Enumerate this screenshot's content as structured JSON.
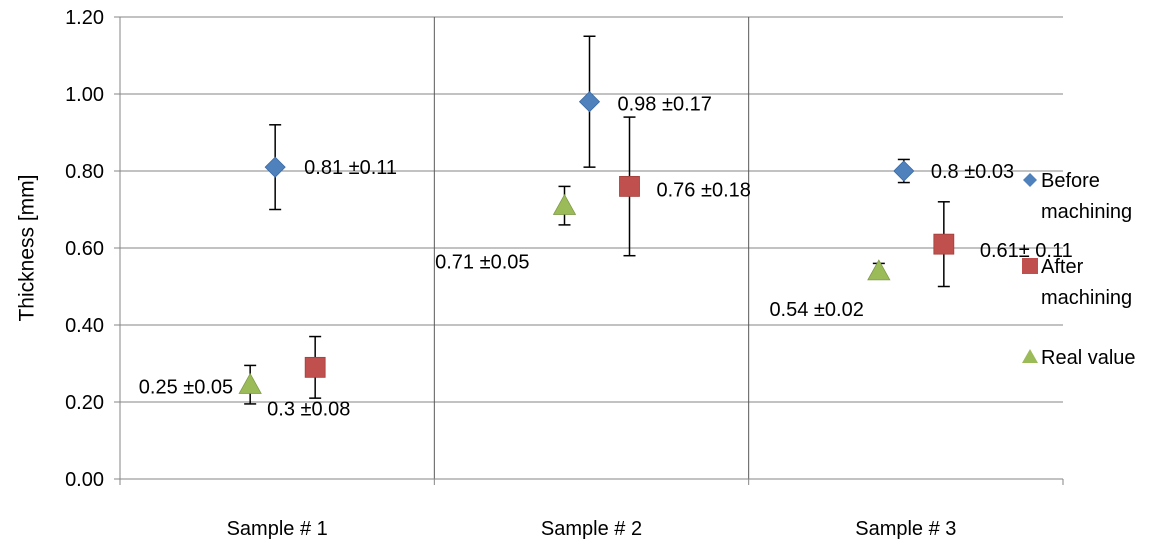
{
  "chart_data": {
    "type": "scatter",
    "title": "",
    "xlabel": "",
    "ylabel": "Thickness [mm]",
    "ylim": [
      0,
      1.2
    ],
    "y_ticks": [
      "0.00",
      "0.20",
      "0.40",
      "0.60",
      "0.80",
      "1.00",
      "1.20"
    ],
    "categories": [
      "Sample # 1",
      "Sample # 2",
      "Sample # 3"
    ],
    "grid": true,
    "legend_position": "right",
    "series": [
      {
        "name": "Before machining",
        "legend_lines": [
          "Before",
          "machining"
        ],
        "marker": "diamond",
        "color": "#4F81BD",
        "values": [
          0.81,
          0.98,
          0.8
        ],
        "errors": [
          0.11,
          0.17,
          0.03
        ],
        "labels": [
          "0.81 ±0.11",
          "0.98 ±0.17",
          "0.8 ±0.03"
        ]
      },
      {
        "name": "After machining",
        "legend_lines": [
          "After",
          "machining"
        ],
        "marker": "square",
        "color": "#C0504D",
        "values": [
          0.29,
          0.76,
          0.61
        ],
        "errors": [
          0.08,
          0.18,
          0.11
        ],
        "labels": [
          "0.3 ±0.08",
          "0.76 ±0.18",
          "0.61± 0.11"
        ]
      },
      {
        "name": "Real value",
        "legend_lines": [
          "Real value"
        ],
        "marker": "triangle",
        "color": "#9BBB59",
        "values": [
          0.245,
          0.71,
          0.54
        ],
        "errors": [
          0.05,
          0.05,
          0.02
        ],
        "labels": [
          "0.25 ±0.05",
          "0.71 ±0.05",
          "0.54 ±0.02"
        ]
      }
    ]
  }
}
